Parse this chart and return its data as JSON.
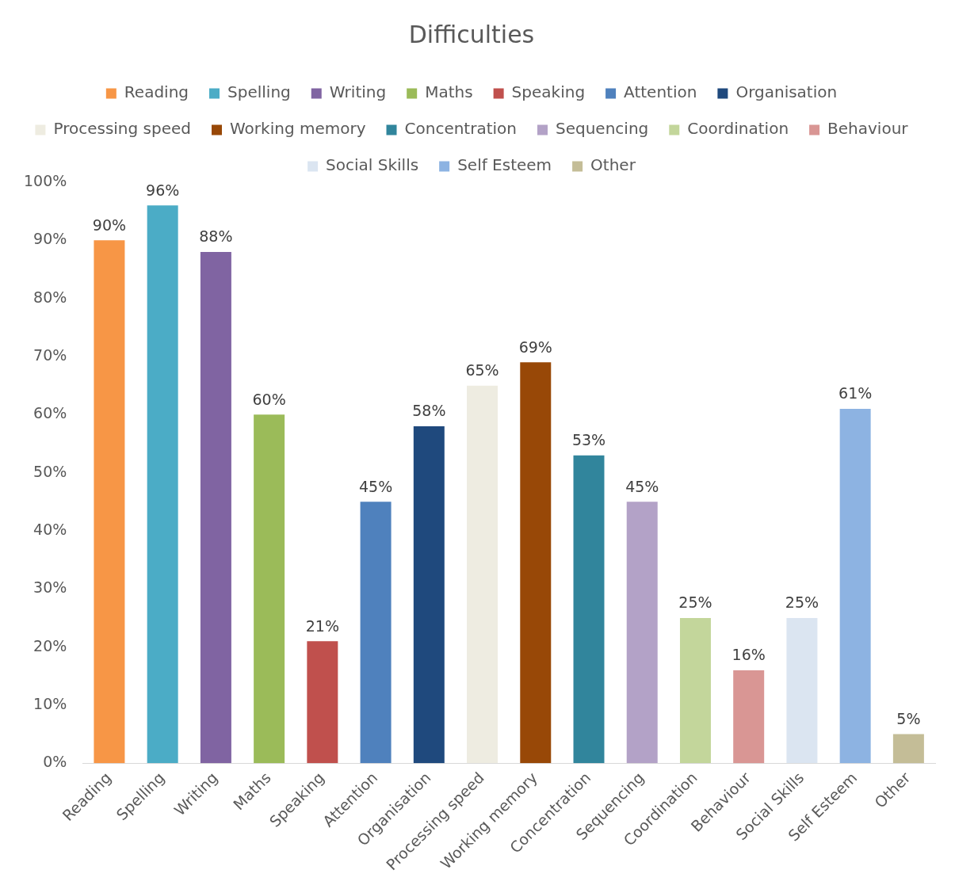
{
  "chart_data": {
    "type": "bar",
    "title": "Difficulties",
    "categories": [
      "Reading",
      "Spelling",
      "Writing",
      "Maths",
      "Speaking",
      "Attention",
      "Organisation",
      "Processing speed",
      "Working memory",
      "Concentration",
      "Sequencing",
      "Coordination",
      "Behaviour",
      "Social Skills",
      "Self Esteem",
      "Other"
    ],
    "series": [
      {
        "name": "Reading",
        "color": "#f79646",
        "values": [
          90,
          null,
          null,
          null,
          null,
          null,
          null,
          null,
          null,
          null,
          null,
          null,
          null,
          null,
          null,
          null
        ],
        "value_labels": [
          "90%",
          null,
          null,
          null,
          null,
          null,
          null,
          null,
          null,
          null,
          null,
          null,
          null,
          null,
          null,
          null
        ]
      },
      {
        "name": "Spelling",
        "color": "#4bacc6",
        "values": [
          null,
          96,
          null,
          null,
          null,
          null,
          null,
          null,
          null,
          null,
          null,
          null,
          null,
          null,
          null,
          null
        ],
        "value_labels": [
          null,
          "96%",
          null,
          null,
          null,
          null,
          null,
          null,
          null,
          null,
          null,
          null,
          null,
          null,
          null,
          null
        ]
      },
      {
        "name": "Writing",
        "color": "#8064a2",
        "values": [
          null,
          null,
          88,
          null,
          null,
          null,
          null,
          null,
          null,
          null,
          null,
          null,
          null,
          null,
          null,
          null
        ],
        "value_labels": [
          null,
          null,
          "88%",
          null,
          null,
          null,
          null,
          null,
          null,
          null,
          null,
          null,
          null,
          null,
          null,
          null
        ]
      },
      {
        "name": "Maths",
        "color": "#9bbb59",
        "values": [
          null,
          null,
          null,
          60,
          null,
          null,
          null,
          null,
          null,
          null,
          null,
          null,
          null,
          null,
          null,
          null
        ],
        "value_labels": [
          null,
          null,
          null,
          "60%",
          null,
          null,
          null,
          null,
          null,
          null,
          null,
          null,
          null,
          null,
          null,
          null
        ]
      },
      {
        "name": "Speaking",
        "color": "#c0504d",
        "values": [
          null,
          null,
          null,
          null,
          21,
          null,
          null,
          null,
          null,
          null,
          null,
          null,
          null,
          null,
          null,
          null
        ],
        "value_labels": [
          null,
          null,
          null,
          null,
          "21%",
          null,
          null,
          null,
          null,
          null,
          null,
          null,
          null,
          null,
          null,
          null
        ]
      },
      {
        "name": "Attention",
        "color": "#4f81bd",
        "values": [
          null,
          null,
          null,
          null,
          null,
          45,
          null,
          null,
          null,
          null,
          null,
          null,
          null,
          null,
          null,
          null
        ],
        "value_labels": [
          null,
          null,
          null,
          null,
          null,
          "45%",
          null,
          null,
          null,
          null,
          null,
          null,
          null,
          null,
          null,
          null
        ]
      },
      {
        "name": "Organisation",
        "color": "#1f497d",
        "values": [
          null,
          null,
          null,
          null,
          null,
          null,
          58,
          null,
          null,
          null,
          null,
          null,
          null,
          null,
          null,
          null
        ],
        "value_labels": [
          null,
          null,
          null,
          null,
          null,
          null,
          "58%",
          null,
          null,
          null,
          null,
          null,
          null,
          null,
          null,
          null
        ]
      },
      {
        "name": "Processing speed",
        "color": "#eeece1",
        "values": [
          null,
          null,
          null,
          null,
          null,
          null,
          null,
          65,
          null,
          null,
          null,
          null,
          null,
          null,
          null,
          null
        ],
        "value_labels": [
          null,
          null,
          null,
          null,
          null,
          null,
          null,
          "65%",
          null,
          null,
          null,
          null,
          null,
          null,
          null,
          null
        ]
      },
      {
        "name": "Working memory",
        "color": "#984807",
        "values": [
          null,
          null,
          null,
          null,
          null,
          null,
          null,
          null,
          69,
          null,
          null,
          null,
          null,
          null,
          null,
          null
        ],
        "value_labels": [
          null,
          null,
          null,
          null,
          null,
          null,
          null,
          null,
          "69%",
          null,
          null,
          null,
          null,
          null,
          null,
          null
        ]
      },
      {
        "name": "Concentration",
        "color": "#31859c",
        "values": [
          null,
          null,
          null,
          null,
          null,
          null,
          null,
          null,
          null,
          53,
          null,
          null,
          null,
          null,
          null,
          null
        ],
        "value_labels": [
          null,
          null,
          null,
          null,
          null,
          null,
          null,
          null,
          null,
          "53%",
          null,
          null,
          null,
          null,
          null,
          null
        ]
      },
      {
        "name": "Sequencing",
        "color": "#b3a2c7",
        "values": [
          null,
          null,
          null,
          null,
          null,
          null,
          null,
          null,
          null,
          null,
          45,
          null,
          null,
          null,
          null,
          null
        ],
        "value_labels": [
          null,
          null,
          null,
          null,
          null,
          null,
          null,
          null,
          null,
          null,
          "45%",
          null,
          null,
          null,
          null,
          null
        ]
      },
      {
        "name": "Coordination",
        "color": "#c3d69b",
        "values": [
          null,
          null,
          null,
          null,
          null,
          null,
          null,
          null,
          null,
          null,
          null,
          25,
          null,
          null,
          null,
          null
        ],
        "value_labels": [
          null,
          null,
          null,
          null,
          null,
          null,
          null,
          null,
          null,
          null,
          null,
          "25%",
          null,
          null,
          null,
          null
        ]
      },
      {
        "name": "Behaviour",
        "color": "#d99694",
        "values": [
          null,
          null,
          null,
          null,
          null,
          null,
          null,
          null,
          null,
          null,
          null,
          null,
          16,
          null,
          null,
          null
        ],
        "value_labels": [
          null,
          null,
          null,
          null,
          null,
          null,
          null,
          null,
          null,
          null,
          null,
          null,
          "16%",
          null,
          null,
          null
        ]
      },
      {
        "name": "Social Skills",
        "color": "#dbe5f1",
        "values": [
          null,
          null,
          null,
          null,
          null,
          null,
          null,
          null,
          null,
          null,
          null,
          null,
          null,
          25,
          null,
          null
        ],
        "value_labels": [
          null,
          null,
          null,
          null,
          null,
          null,
          null,
          null,
          null,
          null,
          null,
          null,
          null,
          "25%",
          null,
          null
        ]
      },
      {
        "name": "Self Esteem",
        "color": "#8db3e2",
        "values": [
          null,
          null,
          null,
          null,
          null,
          null,
          null,
          null,
          null,
          null,
          null,
          null,
          null,
          null,
          61,
          null
        ],
        "value_labels": [
          null,
          null,
          null,
          null,
          null,
          null,
          null,
          null,
          null,
          null,
          null,
          null,
          null,
          null,
          "61%",
          null
        ]
      },
      {
        "name": "Other",
        "color": "#c4bd97",
        "values": [
          null,
          null,
          null,
          null,
          null,
          null,
          null,
          null,
          null,
          null,
          null,
          null,
          null,
          null,
          null,
          5
        ],
        "value_labels": [
          null,
          null,
          null,
          null,
          null,
          null,
          null,
          null,
          null,
          null,
          null,
          null,
          null,
          null,
          null,
          "5%"
        ]
      }
    ],
    "ylim": [
      0,
      100
    ],
    "yticks": [
      {
        "value": 0,
        "label": "0%"
      },
      {
        "value": 10,
        "label": "10%"
      },
      {
        "value": 20,
        "label": "20%"
      },
      {
        "value": 30,
        "label": "30%"
      },
      {
        "value": 40,
        "label": "40%"
      },
      {
        "value": 50,
        "label": "50%"
      },
      {
        "value": 60,
        "label": "60%"
      },
      {
        "value": 70,
        "label": "70%"
      },
      {
        "value": 80,
        "label": "80%"
      },
      {
        "value": 90,
        "label": "90%"
      },
      {
        "value": 100,
        "label": "100%"
      }
    ],
    "legend": "top",
    "grid": false
  }
}
